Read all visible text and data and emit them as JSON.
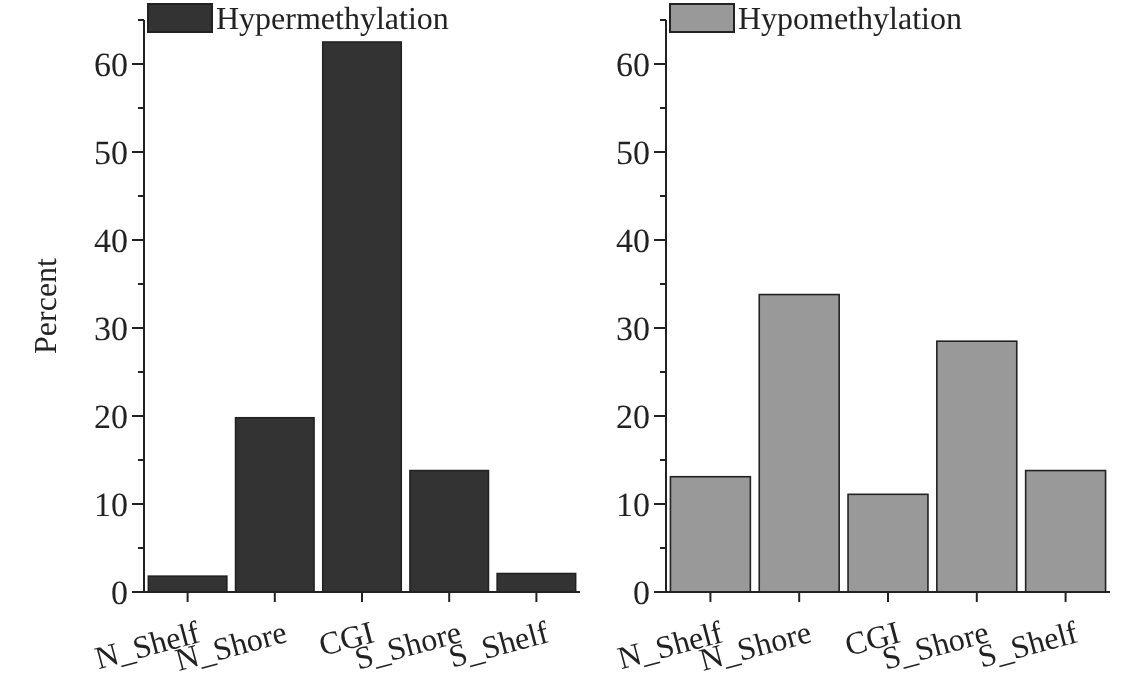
{
  "chart_data": [
    {
      "type": "bar",
      "ylabel": "Percent",
      "categories": [
        "N_Shelf",
        "N_Shore",
        "CGI",
        "S_Shore",
        "S_Shelf"
      ],
      "series": [
        {
          "name": "Hypermethylation",
          "color": "#333333",
          "values": [
            1.8,
            19.8,
            62.5,
            13.8,
            2.1
          ]
        }
      ],
      "ylim": [
        0,
        65
      ],
      "yticks": [
        0,
        10,
        20,
        30,
        40,
        50,
        60
      ],
      "legend": "top left",
      "grid": false
    },
    {
      "type": "bar",
      "categories": [
        "N_Shelf",
        "N_Shore",
        "CGI",
        "S_Shore",
        "S_Shelf"
      ],
      "series": [
        {
          "name": "Hypomethylation",
          "color": "#999999",
          "values": [
            13.1,
            33.8,
            11.1,
            28.5,
            13.8
          ]
        }
      ],
      "ylim": [
        0,
        65
      ],
      "yticks": [
        0,
        10,
        20,
        30,
        40,
        50,
        60
      ],
      "legend": "top left",
      "grid": false
    }
  ]
}
